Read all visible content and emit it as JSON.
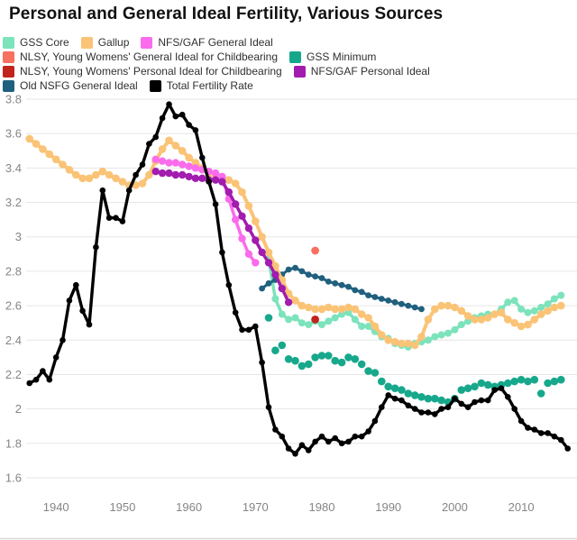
{
  "title": "Personal and General Ideal Fertility, Various Sources",
  "legend": {
    "rows": [
      [
        "GSS Core",
        "Gallup",
        "NFS/GAF General Ideal"
      ],
      [
        "NLSY, Young Womens' General Ideal for Childbearing",
        "GSS Minimum"
      ],
      [
        "NLSY, Young Womens' Personal Ideal for Childbearing",
        "NFS/GAF Personal Ideal"
      ],
      [
        "Old NSFG General Ideal",
        "Total Fertility Rate"
      ]
    ]
  },
  "chart_data": {
    "type": "line",
    "title": "Personal and General Ideal Fertility, Various Sources",
    "xlabel": "",
    "ylabel": "",
    "grid": "horizontal-only",
    "legend_position": "top-left",
    "grid_color": "#e6e6e6",
    "tick_color": "#858585",
    "x_ticks": [
      1940,
      1950,
      1960,
      1970,
      1980,
      1990,
      2000,
      2010
    ],
    "y_ticks": [
      {
        "v": 3.8,
        "label": "3.8"
      },
      {
        "v": 3.6,
        "label": "3.6"
      },
      {
        "v": 3.4,
        "label": "3.4"
      },
      {
        "v": 3.2,
        "label": "3.2"
      },
      {
        "v": 3.0,
        "label": "3"
      },
      {
        "v": 2.8,
        "label": "2.8"
      },
      {
        "v": 2.6,
        "label": "2.6"
      },
      {
        "v": 2.4,
        "label": "2.4"
      },
      {
        "v": 2.2,
        "label": "2.2"
      },
      {
        "v": 2.0,
        "label": "2"
      },
      {
        "v": 1.8,
        "label": "1.8"
      },
      {
        "v": 1.6,
        "label": "1.6"
      }
    ],
    "x_range": [
      1935.5,
      2018.4
    ],
    "y_range": [
      1.6,
      3.8
    ],
    "series": [
      {
        "id": "gss-minimum",
        "name": "GSS Minimum",
        "color": "#17a88c",
        "mode": "markers",
        "lw": 0,
        "r": 4.3,
        "start": 1972,
        "values": [
          2.53,
          2.34,
          2.37,
          2.29,
          2.28,
          2.25,
          2.26,
          2.3,
          2.31,
          2.31,
          2.28,
          2.27,
          2.3,
          2.29,
          2.26,
          2.22,
          2.21,
          2.16,
          2.13,
          2.12,
          2.11,
          2.09,
          2.08,
          2.07,
          2.06,
          2.06,
          2.05,
          2.04,
          2.06,
          2.11,
          2.12,
          2.13,
          2.15,
          2.14,
          2.13,
          2.14,
          2.15,
          2.16,
          2.17,
          2.16,
          2.17,
          2.09,
          2.15,
          2.16,
          2.17
        ]
      },
      {
        "id": "gss-core",
        "name": "GSS Core",
        "color": "#7ce3bc",
        "mode": "line+markers",
        "lw": 3.5,
        "r": 4.0,
        "start": 1972,
        "values": [
          2.87,
          2.64,
          2.55,
          2.52,
          2.53,
          2.5,
          2.49,
          2.51,
          2.49,
          2.51,
          2.53,
          2.55,
          2.56,
          2.52,
          2.48,
          2.48,
          2.45,
          2.42,
          2.41,
          2.38,
          2.37,
          2.36,
          2.38,
          2.39,
          2.4,
          2.42,
          2.43,
          2.44,
          2.46,
          2.49,
          2.51,
          2.53,
          2.54,
          2.55,
          2.55,
          2.58,
          2.62,
          2.63,
          2.58,
          2.56,
          2.57,
          2.59,
          2.61,
          2.64,
          2.66
        ]
      },
      {
        "id": "old-nsfg-general-ideal",
        "name": "Old NSFG General Ideal",
        "color": "#20607f",
        "mode": "line+markers",
        "lw": 3.0,
        "r": 3.4,
        "start": 1971,
        "values": [
          2.7,
          2.73,
          2.75,
          2.78,
          2.81,
          2.82,
          2.8,
          2.78,
          2.77,
          2.76,
          2.74,
          2.73,
          2.72,
          2.71,
          2.69,
          2.68,
          2.66,
          2.65,
          2.64,
          2.63,
          2.62,
          2.61,
          2.6,
          2.59,
          2.58
        ]
      },
      {
        "id": "gallup",
        "name": "Gallup",
        "color": "#fac376",
        "mode": "line+markers",
        "lw": 4.0,
        "r": 4.3,
        "start": 1936,
        "values": [
          3.57,
          3.54,
          3.51,
          3.48,
          3.45,
          3.42,
          3.39,
          3.36,
          3.34,
          3.34,
          3.36,
          3.38,
          3.36,
          3.34,
          3.32,
          3.3,
          3.3,
          3.31,
          3.36,
          3.44,
          3.51,
          3.56,
          3.53,
          3.5,
          3.46,
          3.43,
          3.4,
          3.37,
          3.35,
          3.34,
          3.33,
          3.31,
          3.26,
          3.18,
          3.09,
          3.0,
          2.91,
          2.83,
          2.75,
          2.67,
          2.63,
          2.6,
          2.59,
          2.58,
          2.58,
          2.59,
          2.58,
          2.58,
          2.59,
          2.58,
          2.55,
          2.53,
          2.48,
          2.43,
          2.4,
          2.39,
          2.38,
          2.38,
          2.37,
          2.42,
          2.52,
          2.58,
          2.6,
          2.6,
          2.59,
          2.57,
          2.54,
          2.52,
          2.52,
          2.53,
          2.55,
          2.56,
          2.52,
          2.5,
          2.48,
          2.49,
          2.52,
          2.55,
          2.57,
          2.59,
          2.6
        ]
      },
      {
        "id": "nfs-gaf-general-ideal",
        "name": "NFS/GAF General Ideal",
        "color": "#fa6cec",
        "mode": "line+markers",
        "lw": 3.5,
        "r": 4.2,
        "start": 1955,
        "values": [
          3.45,
          3.44,
          3.43,
          3.43,
          3.42,
          3.41,
          3.4,
          3.39,
          3.38,
          3.37,
          3.35,
          3.22,
          3.1,
          2.99,
          2.9,
          2.85
        ]
      },
      {
        "id": "nfs-gaf-personal-ideal",
        "name": "NFS/GAF Personal Ideal",
        "color": "#a21caf",
        "mode": "line+markers",
        "lw": 3.5,
        "r": 4.2,
        "start": 1955,
        "values": [
          3.38,
          3.37,
          3.37,
          3.36,
          3.36,
          3.35,
          3.34,
          3.34,
          3.33,
          3.33,
          3.32,
          3.26,
          3.19,
          3.12,
          3.05,
          2.98,
          2.91,
          2.85,
          2.78,
          2.7,
          2.62
        ]
      },
      {
        "id": "nlsy-general-ideal",
        "name": "NLSY, Young Womens' General Ideal for Childbearing",
        "color": "#f8705f",
        "mode": "markers",
        "lw": 0,
        "r": 4.4,
        "start": 1979,
        "values": [
          2.92
        ]
      },
      {
        "id": "nlsy-personal-ideal",
        "name": "NLSY, Young Womens' Personal Ideal for Childbearing",
        "color": "#c0241c",
        "mode": "markers",
        "lw": 0,
        "r": 4.4,
        "start": 1979,
        "values": [
          2.52
        ]
      },
      {
        "id": "total-fertility-rate",
        "name": "Total Fertility Rate",
        "color": "#000000",
        "mode": "line+markers",
        "lw": 3.4,
        "r": 3.3,
        "start": 1936,
        "values": [
          2.15,
          2.17,
          2.22,
          2.17,
          2.3,
          2.4,
          2.63,
          2.72,
          2.57,
          2.49,
          2.94,
          3.27,
          3.11,
          3.11,
          3.09,
          3.27,
          3.36,
          3.42,
          3.54,
          3.58,
          3.69,
          3.77,
          3.7,
          3.71,
          3.65,
          3.62,
          3.46,
          3.32,
          3.19,
          2.91,
          2.72,
          2.56,
          2.46,
          2.46,
          2.48,
          2.27,
          2.01,
          1.88,
          1.84,
          1.77,
          1.74,
          1.79,
          1.76,
          1.81,
          1.84,
          1.81,
          1.83,
          1.8,
          1.81,
          1.84,
          1.84,
          1.87,
          1.93,
          2.01,
          2.08,
          2.06,
          2.05,
          2.02,
          2.0,
          1.98,
          1.98,
          1.97,
          2.0,
          2.01,
          2.06,
          2.03,
          2.01,
          2.04,
          2.05,
          2.05,
          2.11,
          2.12,
          2.07,
          2.0,
          1.93,
          1.89,
          1.88,
          1.86,
          1.86,
          1.84,
          1.82,
          1.77
        ]
      }
    ]
  }
}
